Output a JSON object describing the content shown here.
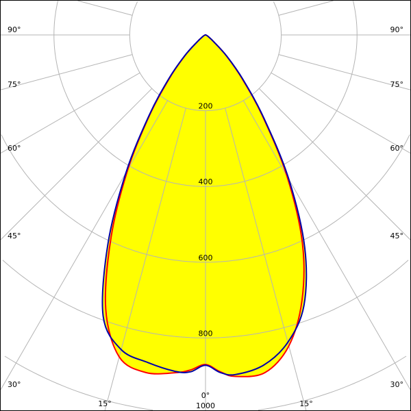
{
  "chart_data": {
    "type": "polar",
    "title": "",
    "radial_ticks": [
      200,
      400,
      600,
      800,
      1000
    ],
    "radial_tick_labels": [
      "200",
      "400",
      "600",
      "800",
      "1000"
    ],
    "angle_labels": {
      "left": [
        "90°",
        "75°",
        "60°",
        "45°",
        "30°",
        "15°"
      ],
      "center": "0°",
      "right": [
        "90°",
        "75°",
        "60°",
        "45°",
        "30°",
        "15°"
      ]
    },
    "grid": true,
    "fill_color": "#ffff00",
    "series": [
      {
        "color": "#ff0000",
        "angles": [
          -90,
          -80,
          -70,
          -60,
          -50,
          -45,
          -40,
          -35,
          -30,
          -25,
          -20,
          -15,
          -10,
          -5,
          -2.5,
          0,
          2.5,
          5,
          10,
          15,
          20,
          25,
          30,
          35,
          40,
          45,
          50,
          60,
          70,
          80,
          90
        ],
        "values": [
          0,
          1,
          3,
          8,
          30,
          75,
          145,
          255,
          410,
          590,
          770,
          880,
          905,
          895,
          885,
          870,
          890,
          905,
          905,
          850,
          745,
          605,
          430,
          265,
          150,
          78,
          30,
          8,
          3,
          1,
          0
        ]
      },
      {
        "color": "#0000aa",
        "angles": [
          -90,
          -80,
          -70,
          -60,
          -50,
          -45,
          -40,
          -35,
          -30,
          -25,
          -20,
          -15,
          -10,
          -5,
          -2.5,
          0,
          2.5,
          5,
          10,
          15,
          20,
          25,
          30,
          35,
          40,
          45,
          50,
          60,
          70,
          80,
          90
        ],
        "values": [
          0,
          1,
          3,
          8,
          30,
          77,
          150,
          260,
          420,
          610,
          790,
          860,
          878,
          892,
          890,
          872,
          892,
          900,
          885,
          840,
          760,
          620,
          440,
          270,
          155,
          80,
          30,
          8,
          3,
          1,
          0
        ]
      }
    ]
  }
}
